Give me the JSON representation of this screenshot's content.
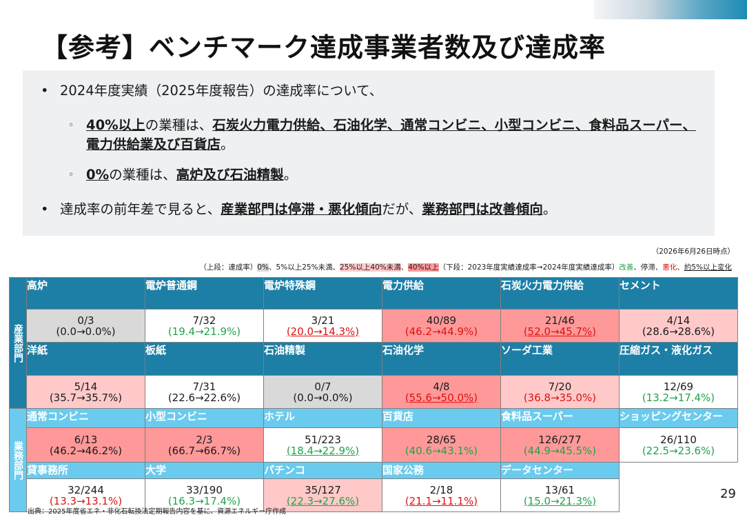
{
  "title": "【参考】ベンチマーク達成事業者数及び達成率",
  "summary": {
    "b1": "2024年度実績（2025年度報告）の達成率について、",
    "s1_a": "40%以上",
    "s1_b": "の業種は、",
    "s1_c": "石炭火力電力供給、石油化学、通常コンビニ、小型コンビニ、食料品スーパー、電力供給業及び百貨店",
    "s1_d": "。",
    "s2_a": "0%",
    "s2_b": "の業種は、",
    "s2_c": "高炉及び石油精製",
    "s2_d": "。",
    "b2_a": "達成率の前年差で見ると、",
    "b2_b": "産業部門は停滞・悪化傾向",
    "b2_c": "だが、",
    "b2_d": "業務部門は改善傾向",
    "b2_e": "。"
  },
  "as_of": "（2026年6月26日時点）",
  "legend": {
    "t1": "（上段：達成率）",
    "gray": "0%",
    "t2": "、5%以上25%未満、",
    "lpink": "25%以上40%未満",
    "t3": "、",
    "pink": "40%以上",
    "t4": "（下段：2023年度実績達成率→2024年度実績達成率）",
    "improve": "改善",
    "t5": "、停滞、",
    "worse": "悪化",
    "t6": "、",
    "change": "約5%以上変化"
  },
  "sides": {
    "industry": "産業部門",
    "business": "業務部門"
  },
  "colors": {
    "industry_header": "#1d7fa6",
    "business_header": "#6bcbee",
    "gray": "#d9d9d9",
    "light_pink": "#ffc9c9",
    "pink": "#ff9999",
    "improve": "#1fa34a",
    "worse": "#e01010"
  },
  "rows": [
    {
      "group": "industry",
      "headers": [
        "高炉",
        "電炉普通鋼",
        "電炉特殊鋼",
        "電力供給",
        "石炭火力電力供給",
        "セメント"
      ],
      "cells": [
        {
          "count": "0/3",
          "rate": "(0.0→0.0%)",
          "bg": "gray",
          "trend": "flat",
          "ul": false
        },
        {
          "count": "7/32",
          "rate": "(19.4→21.9%)",
          "bg": "white",
          "trend": "up",
          "ul": false
        },
        {
          "count": "3/21",
          "rate": "(20.0→14.3%)",
          "bg": "white",
          "trend": "down",
          "ul": true
        },
        {
          "count": "40/89",
          "rate": "(46.2→44.9%)",
          "bg": "pink",
          "trend": "down",
          "ul": false
        },
        {
          "count": "21/46",
          "rate": "(52.0→45.7%)",
          "bg": "pink",
          "trend": "down",
          "ul": true
        },
        {
          "count": "4/14",
          "rate": "(28.6→28.6%)",
          "bg": "lpink",
          "trend": "flat",
          "ul": false
        }
      ]
    },
    {
      "group": "industry",
      "headers": [
        "洋紙",
        "板紙",
        "石油精製",
        "石油化学",
        "ソーダ工業",
        "圧縮ガス・液化ガス"
      ],
      "cells": [
        {
          "count": "5/14",
          "rate": "(35.7→35.7%)",
          "bg": "lpink",
          "trend": "flat",
          "ul": false
        },
        {
          "count": "7/31",
          "rate": "(22.6→22.6%)",
          "bg": "white",
          "trend": "flat",
          "ul": false
        },
        {
          "count": "0/7",
          "rate": "(0.0→0.0%)",
          "bg": "gray",
          "trend": "flat",
          "ul": false
        },
        {
          "count": "4/8",
          "rate": "(55.6→50.0%)",
          "bg": "pink",
          "trend": "down",
          "ul": true
        },
        {
          "count": "7/20",
          "rate": "(36.8→35.0%)",
          "bg": "lpink",
          "trend": "down",
          "ul": false
        },
        {
          "count": "12/69",
          "rate": "(13.2→17.4%)",
          "bg": "white",
          "trend": "up",
          "ul": false
        }
      ]
    },
    {
      "group": "business",
      "headers": [
        "通常コンビニ",
        "小型コンビニ",
        "ホテル",
        "百貨店",
        "食料品スーパー",
        "ショッピングセンター"
      ],
      "cells": [
        {
          "count": "6/13",
          "rate": "(46.2→46.2%)",
          "bg": "pink",
          "trend": "flat",
          "ul": false
        },
        {
          "count": "2/3",
          "rate": "(66.7→66.7%)",
          "bg": "pink",
          "trend": "flat",
          "ul": false
        },
        {
          "count": "51/223",
          "rate": "(18.4→22.9%)",
          "bg": "white",
          "trend": "up",
          "ul": true
        },
        {
          "count": "28/65",
          "rate": "(40.6→43.1%)",
          "bg": "pink",
          "trend": "up",
          "ul": false
        },
        {
          "count": "126/277",
          "rate": "(44.9→45.5%)",
          "bg": "pink",
          "trend": "up",
          "ul": false
        },
        {
          "count": "26/110",
          "rate": "(22.5→23.6%)",
          "bg": "white",
          "trend": "up",
          "ul": false
        }
      ]
    },
    {
      "group": "business",
      "headers": [
        "貸事務所",
        "大学",
        "パチンコ",
        "国家公務",
        "データセンター",
        ""
      ],
      "cells": [
        {
          "count": "32/244",
          "rate": "(13.3→13.1%)",
          "bg": "white",
          "trend": "down",
          "ul": false
        },
        {
          "count": "33/190",
          "rate": "(16.3→17.4%)",
          "bg": "white",
          "trend": "up",
          "ul": false
        },
        {
          "count": "35/127",
          "rate": "(22.3→27.6%)",
          "bg": "lpink",
          "trend": "up",
          "ul": true
        },
        {
          "count": "2/18",
          "rate": "(21.1→11.1%)",
          "bg": "white",
          "trend": "down",
          "ul": true
        },
        {
          "count": "13/61",
          "rate": "(15.0→21.3%)",
          "bg": "white",
          "trend": "up",
          "ul": true
        },
        {
          "count": "",
          "rate": "",
          "bg": "none",
          "trend": "flat",
          "ul": false
        }
      ]
    }
  ],
  "source": "出典：2025年度省エネ・非化石転換法定期報告内容を基に、資源エネルギー庁作成",
  "page_number": "29"
}
